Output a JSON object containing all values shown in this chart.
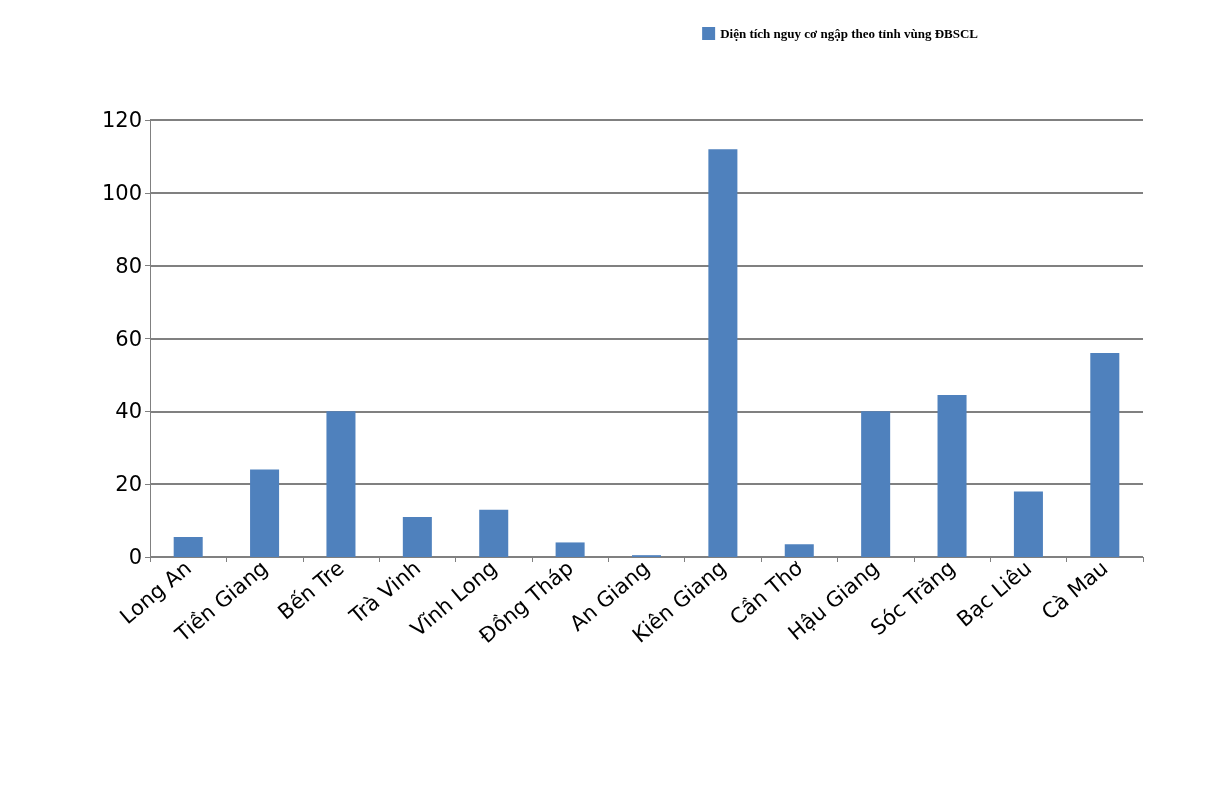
{
  "chart_data": {
    "type": "bar",
    "categories": [
      "Long An",
      "Tiền Giang",
      "Bến Tre",
      "Trà Vinh",
      "Vĩnh Long",
      "Đồng Tháp",
      "An Giang",
      "Kiên Giang",
      "Cần Thơ",
      "Hậu Giang",
      "Sóc Trăng",
      "Bạc Liêu",
      "Cà Mau"
    ],
    "series": [
      {
        "name": "Diện tích nguy cơ ngập theo tỉnh vùng ĐBSCL",
        "color": "#4f81bd",
        "values": [
          5.5,
          24,
          40,
          11,
          13,
          4,
          0.5,
          112,
          3.5,
          40,
          44.5,
          18,
          56
        ]
      }
    ],
    "ylim": [
      0,
      120
    ],
    "yticks": [
      0,
      20,
      40,
      60,
      80,
      100,
      120
    ],
    "grid": "y",
    "legend": "top right"
  }
}
